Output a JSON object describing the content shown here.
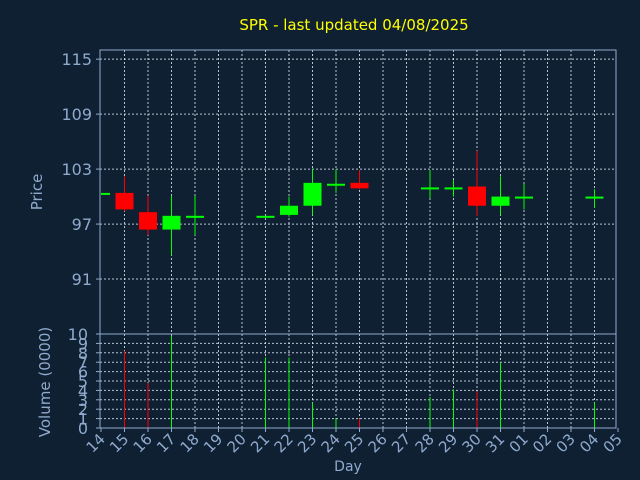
{
  "chart_data": [
    {
      "type": "candlestick",
      "title": "SPR - last updated 04/08/2025",
      "ylabel": "Price",
      "ylim": [
        85,
        116
      ],
      "yticks": [
        115,
        109,
        103,
        97,
        91,
        85
      ],
      "yticklabels": [
        "115",
        "109",
        "103",
        "97",
        "91",
        ""
      ],
      "grid": true,
      "days": [
        "14",
        "15",
        "16",
        "17",
        "18",
        "19",
        "20",
        "21",
        "22",
        "23",
        "24",
        "25",
        "26",
        "27",
        "28",
        "29",
        "30",
        "31",
        "01",
        "02",
        "03",
        "04",
        "05"
      ],
      "candles": [
        {
          "day": "14",
          "open": 100.4,
          "close": 100.4,
          "high": 100.4,
          "low": 100.4
        },
        {
          "day": "15",
          "open": 100.4,
          "close": 98.6,
          "high": 102.2,
          "low": 98.4
        },
        {
          "day": "16",
          "open": 98.3,
          "close": 96.4,
          "high": 100.1,
          "low": 95.8
        },
        {
          "day": "17",
          "open": 96.4,
          "close": 97.9,
          "high": 100.1,
          "low": 93.6
        },
        {
          "day": "18",
          "open": 97.8,
          "close": 97.9,
          "high": 100.1,
          "low": 95.8
        },
        {
          "day": "21",
          "open": 97.8,
          "close": 97.9,
          "high": 97.9,
          "low": 97.6
        },
        {
          "day": "22",
          "open": 98.0,
          "close": 99.0,
          "high": 100.0,
          "low": 97.8
        },
        {
          "day": "23",
          "open": 99.0,
          "close": 101.5,
          "high": 103.0,
          "low": 98.0
        },
        {
          "day": "24",
          "open": 101.2,
          "close": 101.4,
          "high": 103.0,
          "low": 100.4
        },
        {
          "day": "25",
          "open": 101.5,
          "close": 100.9,
          "high": 102.9,
          "low": 100.8
        },
        {
          "day": "28",
          "open": 100.9,
          "close": 101.0,
          "high": 102.9,
          "low": 99.8
        },
        {
          "day": "29",
          "open": 100.9,
          "close": 101.0,
          "high": 101.8,
          "low": 100.0
        },
        {
          "day": "30",
          "open": 101.1,
          "close": 99.0,
          "high": 105.0,
          "low": 97.9
        },
        {
          "day": "31",
          "open": 99.0,
          "close": 100.0,
          "high": 102.2,
          "low": 98.0
        },
        {
          "day": "01",
          "open": 99.8,
          "close": 100.0,
          "high": 101.4,
          "low": 98.6
        },
        {
          "day": "04",
          "open": 99.8,
          "close": 100.0,
          "high": 100.8,
          "low": 98.8
        }
      ],
      "colors": {
        "up": "#00ff00",
        "down": "#ff0000"
      }
    },
    {
      "type": "bar",
      "ylabel": "Volume (0000)",
      "xlabel": "Day",
      "ylim": [
        0,
        10
      ],
      "yticks": [
        0,
        1,
        2,
        3,
        4,
        5,
        6,
        7,
        8,
        9,
        10
      ],
      "yticklabels": [
        "0",
        "1",
        "2",
        "3",
        "4",
        "5",
        "6",
        "7",
        "8",
        "9",
        "10"
      ],
      "grid": true,
      "bars": [
        {
          "day": "15",
          "value": 8.2,
          "color": "#ff0000"
        },
        {
          "day": "16",
          "value": 4.8,
          "color": "#ff0000"
        },
        {
          "day": "17",
          "value": 9.8,
          "color": "#00ff00"
        },
        {
          "day": "21",
          "value": 7.5,
          "color": "#00ff00"
        },
        {
          "day": "22",
          "value": 7.5,
          "color": "#00ff00"
        },
        {
          "day": "23",
          "value": 2.7,
          "color": "#00ff00"
        },
        {
          "day": "24",
          "value": 1.0,
          "color": "#00ff00"
        },
        {
          "day": "25",
          "value": 1.0,
          "color": "#ff0000"
        },
        {
          "day": "28",
          "value": 3.3,
          "color": "#00ff00"
        },
        {
          "day": "29",
          "value": 4.1,
          "color": "#00ff00"
        },
        {
          "day": "30",
          "value": 3.9,
          "color": "#ff0000"
        },
        {
          "day": "31",
          "value": 7.0,
          "color": "#00ff00"
        },
        {
          "day": "04",
          "value": 2.7,
          "color": "#00ff00"
        }
      ]
    }
  ]
}
